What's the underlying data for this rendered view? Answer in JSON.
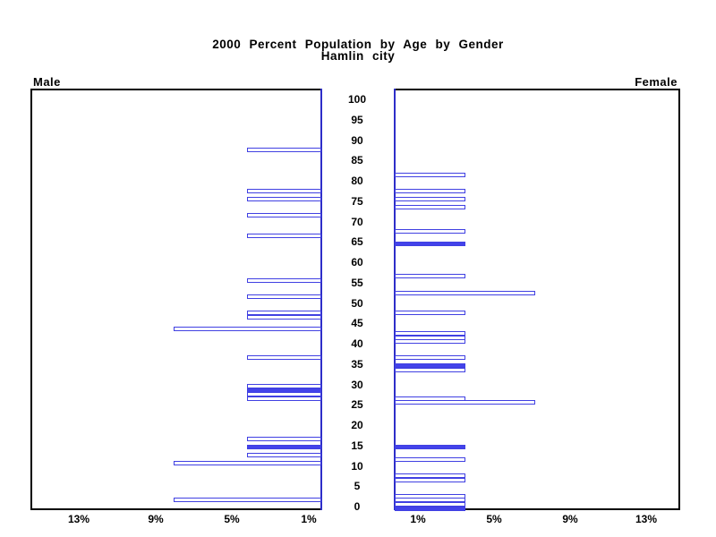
{
  "chart_data": {
    "type": "bar",
    "subtype": "population_pyramid",
    "title": "2000 Percent Population by Age by Gender",
    "subtitle": "Hamlin city",
    "left_panel_label": "Male",
    "right_panel_label": "Female",
    "age_axis": {
      "min": 0,
      "max": 100,
      "step": 5,
      "tick_labels": [
        "100",
        "95",
        "90",
        "85",
        "80",
        "75",
        "70",
        "65",
        "60",
        "55",
        "50",
        "45",
        "40",
        "35",
        "30",
        "25",
        "20",
        "15",
        "10",
        "5",
        "0"
      ]
    },
    "pct_axis": {
      "tick_values": [
        1,
        5,
        9,
        13
      ],
      "male_tick_labels": [
        "13%",
        "9%",
        "5%",
        "1%"
      ],
      "female_tick_labels": [
        "1%",
        "5%",
        "9%",
        "13%"
      ],
      "max_pct": 15
    },
    "series": [
      {
        "name": "Male",
        "direction": "left",
        "bars": [
          {
            "age": 88,
            "pct": 3.9,
            "filled": false
          },
          {
            "age": 78,
            "pct": 3.9,
            "filled": false
          },
          {
            "age": 76,
            "pct": 3.9,
            "filled": false
          },
          {
            "age": 72,
            "pct": 3.9,
            "filled": false
          },
          {
            "age": 67,
            "pct": 3.9,
            "filled": false
          },
          {
            "age": 56,
            "pct": 3.9,
            "filled": false
          },
          {
            "age": 52,
            "pct": 3.9,
            "filled": false
          },
          {
            "age": 48,
            "pct": 3.9,
            "filled": false
          },
          {
            "age": 47,
            "pct": 3.9,
            "filled": false
          },
          {
            "age": 44,
            "pct": 7.7,
            "filled": false
          },
          {
            "age": 37,
            "pct": 3.9,
            "filled": false
          },
          {
            "age": 30,
            "pct": 3.9,
            "filled": false
          },
          {
            "age": 29,
            "pct": 3.9,
            "filled": true
          },
          {
            "age": 28,
            "pct": 3.9,
            "filled": false
          },
          {
            "age": 27,
            "pct": 3.9,
            "filled": false
          },
          {
            "age": 17,
            "pct": 3.9,
            "filled": false
          },
          {
            "age": 15,
            "pct": 3.9,
            "filled": true
          },
          {
            "age": 13,
            "pct": 3.9,
            "filled": false
          },
          {
            "age": 11,
            "pct": 7.7,
            "filled": false
          },
          {
            "age": 2,
            "pct": 7.7,
            "filled": false
          }
        ]
      },
      {
        "name": "Female",
        "direction": "right",
        "bars": [
          {
            "age": 82,
            "pct": 3.7,
            "filled": false
          },
          {
            "age": 78,
            "pct": 3.7,
            "filled": false
          },
          {
            "age": 76,
            "pct": 3.7,
            "filled": false
          },
          {
            "age": 74,
            "pct": 3.7,
            "filled": false
          },
          {
            "age": 68,
            "pct": 3.7,
            "filled": false
          },
          {
            "age": 65,
            "pct": 3.7,
            "filled": true
          },
          {
            "age": 57,
            "pct": 3.7,
            "filled": false
          },
          {
            "age": 53,
            "pct": 7.4,
            "filled": false
          },
          {
            "age": 48,
            "pct": 3.7,
            "filled": false
          },
          {
            "age": 43,
            "pct": 3.7,
            "filled": false
          },
          {
            "age": 42,
            "pct": 3.7,
            "filled": false
          },
          {
            "age": 41,
            "pct": 3.7,
            "filled": false
          },
          {
            "age": 37,
            "pct": 3.7,
            "filled": false
          },
          {
            "age": 35,
            "pct": 3.7,
            "filled": true
          },
          {
            "age": 34,
            "pct": 3.7,
            "filled": false
          },
          {
            "age": 27,
            "pct": 3.7,
            "filled": false
          },
          {
            "age": 26,
            "pct": 7.4,
            "filled": false
          },
          {
            "age": 15,
            "pct": 3.7,
            "filled": true
          },
          {
            "age": 12,
            "pct": 3.7,
            "filled": false
          },
          {
            "age": 8,
            "pct": 3.7,
            "filled": false
          },
          {
            "age": 7,
            "pct": 3.7,
            "filled": false
          },
          {
            "age": 3,
            "pct": 3.7,
            "filled": false
          },
          {
            "age": 2,
            "pct": 3.7,
            "filled": false
          },
          {
            "age": 1,
            "pct": 3.7,
            "filled": false
          },
          {
            "age": 0,
            "pct": 3.7,
            "filled": true
          }
        ]
      }
    ],
    "colors": {
      "bar_outline": "#4040e2",
      "bar_fill_solid": "#4343ea",
      "bar_fill_hollow": "#ffffff",
      "center_axis_line": "#2e2ec8",
      "frame": "#000000",
      "background": "#ffffff"
    },
    "layout_hints": {
      "grid": false,
      "legend": "none",
      "age_labels_position": "center between panels",
      "bars_are_single_year_of_age": true
    }
  }
}
